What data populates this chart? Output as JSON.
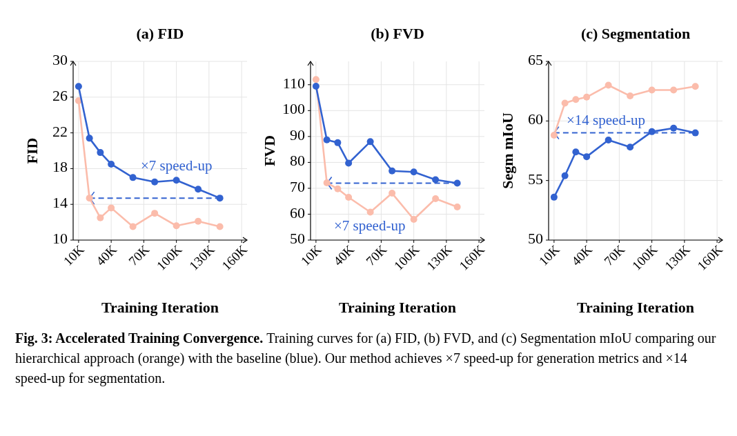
{
  "chart_data": [
    {
      "type": "line",
      "title": "(a) FID",
      "xlabel": "Training Iteration",
      "ylabel": "FID",
      "x": [
        10000,
        20000,
        30000,
        40000,
        60000,
        80000,
        100000,
        120000,
        140000
      ],
      "series": [
        {
          "color": "#3262d0",
          "values": [
            27.2,
            21.4,
            19.8,
            18.5,
            17.0,
            16.5,
            16.7,
            15.7,
            14.7
          ]
        },
        {
          "color": "#fbbcab",
          "values": [
            25.6,
            14.7,
            12.5,
            13.6,
            11.5,
            13.0,
            11.6,
            12.1,
            11.5
          ]
        },
        {
          "color": "#3262d0",
          "line_style": "dashed",
          "marker": "none",
          "x": [
            20000,
            140000
          ],
          "values": [
            14.7,
            14.7
          ]
        }
      ],
      "xlim": [
        5000,
        165000
      ],
      "xticks": [
        {
          "value": 10000,
          "label": "10K"
        },
        {
          "value": 40000,
          "label": "40K"
        },
        {
          "value": 70000,
          "label": "70K"
        },
        {
          "value": 100000,
          "label": "100K"
        },
        {
          "value": 130000,
          "label": "130K"
        },
        {
          "value": 160000,
          "label": "160K"
        }
      ],
      "ylim": [
        10,
        30
      ],
      "yticks": [
        10,
        14,
        18,
        22,
        26,
        30
      ],
      "grid": true,
      "marker": "circle",
      "line_style": "solid",
      "annotations": [
        "×7 speed-up",
        "Fig. 3: Accelerated Training Convergence.",
        "Training curves for (a) FID, (b) FVD, and (c) Segmentation mIoU comparing our hierarchical approach (orange) with the baseline (blue). Our method achieves ×7 speed-up for generation metrics and ×14 speed-up for segmentation."
      ]
    },
    {
      "type": "line",
      "title": "(b) FVD",
      "xlabel": "Training Iteration",
      "ylabel": "FVD",
      "x": [
        10000,
        20000,
        30000,
        40000,
        60000,
        80000,
        100000,
        120000,
        140000
      ],
      "series": [
        {
          "color": "#3262d0",
          "values": [
            109.4,
            88.7,
            87.6,
            79.7,
            88.0,
            76.7,
            76.3,
            73.3,
            72.0
          ]
        },
        {
          "color": "#fbbcab",
          "values": [
            112.0,
            72.1,
            69.8,
            66.5,
            60.8,
            68.1,
            58.0,
            66.0,
            62.8
          ]
        },
        {
          "color": "#3262d0",
          "line_style": "dashed",
          "marker": "none",
          "x": [
            20000,
            140000
          ],
          "values": [
            72.0,
            72.0
          ]
        }
      ],
      "xlim": [
        5000,
        165000
      ],
      "xticks": [
        {
          "value": 10000,
          "label": "10K"
        },
        {
          "value": 40000,
          "label": "40K"
        },
        {
          "value": 70000,
          "label": "70K"
        },
        {
          "value": 100000,
          "label": "100K"
        },
        {
          "value": 130000,
          "label": "130K"
        },
        {
          "value": 160000,
          "label": "160K"
        }
      ],
      "ylim": [
        50,
        119
      ],
      "yticks": [
        50,
        60,
        70,
        80,
        90,
        100,
        110
      ],
      "grid": true,
      "marker": "circle",
      "line_style": "solid",
      "annotations": [
        "×7 speed-up"
      ]
    },
    {
      "type": "line",
      "title": "(c) Segmentation",
      "xlabel": "Training Iteration",
      "ylabel": "Segm mIoU",
      "x": [
        10000,
        20000,
        30000,
        40000,
        60000,
        80000,
        100000,
        120000,
        140000
      ],
      "series": [
        {
          "color": "#3262d0",
          "values": [
            53.6,
            55.4,
            57.4,
            57.0,
            58.4,
            57.8,
            59.1,
            59.4,
            59.0
          ]
        },
        {
          "color": "#fbbcab",
          "values": [
            58.8,
            61.5,
            61.8,
            62.0,
            63.0,
            62.1,
            62.6,
            62.6,
            62.9
          ]
        },
        {
          "color": "#3262d0",
          "line_style": "dashed",
          "marker": "none",
          "x": [
            10000,
            140000
          ],
          "values": [
            59.0,
            59.0
          ]
        }
      ],
      "xlim": [
        5000,
        165000
      ],
      "xticks": [
        {
          "value": 10000,
          "label": "10K"
        },
        {
          "value": 40000,
          "label": "40K"
        },
        {
          "value": 70000,
          "label": "70K"
        },
        {
          "value": 100000,
          "label": "100K"
        },
        {
          "value": 130000,
          "label": "130K"
        },
        {
          "value": 160000,
          "label": "160K"
        }
      ],
      "ylim": [
        50,
        65
      ],
      "yticks": [
        50,
        55,
        60,
        65
      ],
      "grid": true,
      "marker": "circle",
      "line_style": "solid",
      "annotations": [
        "×14 speed-up"
      ]
    }
  ]
}
